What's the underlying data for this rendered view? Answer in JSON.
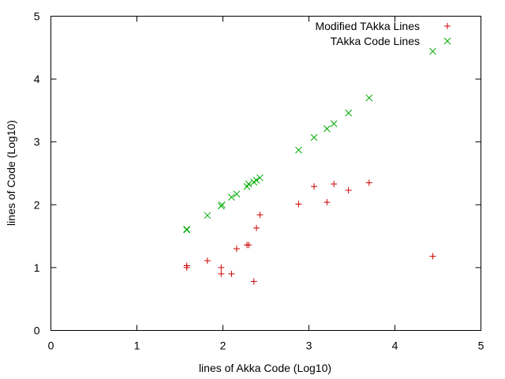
{
  "chart_data": {
    "type": "scatter",
    "title": "",
    "xlabel": "lines of Akka Code (Log10)",
    "ylabel": "lines of Code (Log10)",
    "xlim": [
      0,
      5
    ],
    "ylim": [
      0,
      5
    ],
    "x_ticks": [
      0,
      1,
      2,
      3,
      4,
      5
    ],
    "y_ticks": [
      0,
      1,
      2,
      3,
      4,
      5
    ],
    "grid": false,
    "legend_position": "top-right",
    "series": [
      {
        "name": "Modified TAkka Lines",
        "marker": "plus",
        "color": "#cc0000",
        "points": [
          [
            1.58,
            1.03
          ],
          [
            1.58,
            1.0
          ],
          [
            1.82,
            1.11
          ],
          [
            1.98,
            1.0
          ],
          [
            1.98,
            0.9
          ],
          [
            2.1,
            0.9
          ],
          [
            2.16,
            1.3
          ],
          [
            2.28,
            1.36
          ],
          [
            2.3,
            1.36
          ],
          [
            2.36,
            0.78
          ],
          [
            2.39,
            1.63
          ],
          [
            2.43,
            1.84
          ],
          [
            2.88,
            2.01
          ],
          [
            3.06,
            2.29
          ],
          [
            3.21,
            2.04
          ],
          [
            3.29,
            2.33
          ],
          [
            3.46,
            2.23
          ],
          [
            3.7,
            2.35
          ],
          [
            4.44,
            1.18
          ]
        ]
      },
      {
        "name": "TAkka Code Lines",
        "marker": "x",
        "color": "#00aa00",
        "points": [
          [
            1.58,
            1.6
          ],
          [
            1.58,
            1.61
          ],
          [
            1.82,
            1.83
          ],
          [
            1.98,
            1.98
          ],
          [
            1.99,
            2.0
          ],
          [
            2.1,
            2.12
          ],
          [
            2.16,
            2.17
          ],
          [
            2.28,
            2.29
          ],
          [
            2.3,
            2.33
          ],
          [
            2.36,
            2.36
          ],
          [
            2.39,
            2.39
          ],
          [
            2.43,
            2.43
          ],
          [
            2.88,
            2.87
          ],
          [
            3.06,
            3.07
          ],
          [
            3.21,
            3.21
          ],
          [
            3.29,
            3.29
          ],
          [
            3.46,
            3.46
          ],
          [
            3.7,
            3.7
          ],
          [
            4.44,
            4.44
          ]
        ]
      }
    ]
  }
}
